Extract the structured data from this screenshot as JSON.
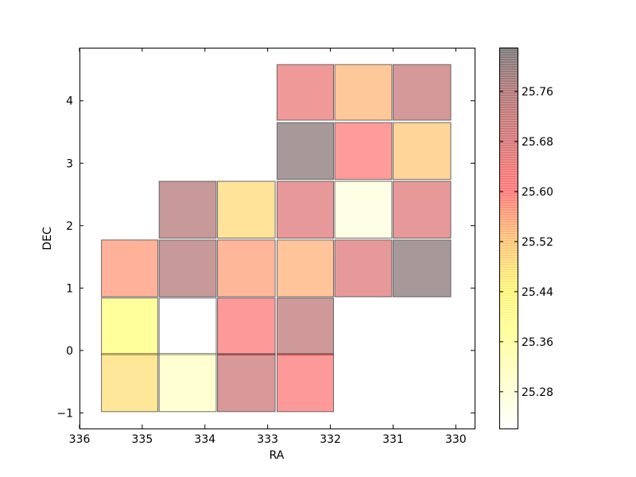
{
  "chart_data": {
    "type": "heatmap",
    "xlabel": "RA",
    "ylabel": "DEC",
    "xlim": [
      336,
      329.7
    ],
    "ylim": [
      -1.25,
      4.85
    ],
    "x_ticks": [
      336,
      335,
      334,
      333,
      332,
      331,
      330
    ],
    "x_tick_labels": [
      "336",
      "335",
      "334",
      "333",
      "332",
      "331",
      "330"
    ],
    "y_ticks": [
      -1,
      0,
      1,
      2,
      3,
      4
    ],
    "y_tick_labels": [
      "−1",
      "0",
      "1",
      "2",
      "3",
      "4"
    ],
    "grid": false,
    "colormap": "hot_r",
    "cell_opacity": 0.4,
    "colorbar": {
      "range": [
        25.22,
        25.83
      ],
      "ticks": [
        25.28,
        25.36,
        25.44,
        25.52,
        25.6,
        25.68,
        25.76
      ],
      "tick_labels": [
        "25.28",
        "25.36",
        "25.44",
        "25.52",
        "25.60",
        "25.68",
        "25.76"
      ]
    },
    "cells": [
      {
        "ra_min": 332.85,
        "ra_max": 331.95,
        "dec_min": 3.69,
        "dec_max": 4.58,
        "value": 25.64
      },
      {
        "ra_min": 331.93,
        "ra_max": 331.02,
        "dec_min": 3.69,
        "dec_max": 4.58,
        "value": 25.5
      },
      {
        "ra_min": 331.0,
        "ra_max": 330.08,
        "dec_min": 3.69,
        "dec_max": 4.58,
        "value": 25.7
      },
      {
        "ra_min": 332.85,
        "ra_max": 331.95,
        "dec_min": 2.74,
        "dec_max": 3.65,
        "value": 25.8
      },
      {
        "ra_min": 331.93,
        "ra_max": 331.02,
        "dec_min": 2.74,
        "dec_max": 3.65,
        "value": 25.6
      },
      {
        "ra_min": 331.0,
        "ra_max": 330.08,
        "dec_min": 2.74,
        "dec_max": 3.65,
        "value": 25.47
      },
      {
        "ra_min": 334.73,
        "ra_max": 333.82,
        "dec_min": 1.8,
        "dec_max": 2.71,
        "value": 25.73
      },
      {
        "ra_min": 333.8,
        "ra_max": 332.88,
        "dec_min": 1.8,
        "dec_max": 2.71,
        "value": 25.44
      },
      {
        "ra_min": 332.85,
        "ra_max": 331.95,
        "dec_min": 1.8,
        "dec_max": 2.71,
        "value": 25.66
      },
      {
        "ra_min": 331.93,
        "ra_max": 331.02,
        "dec_min": 1.8,
        "dec_max": 2.71,
        "value": 25.26
      },
      {
        "ra_min": 331.0,
        "ra_max": 330.08,
        "dec_min": 1.8,
        "dec_max": 2.71,
        "value": 25.66
      },
      {
        "ra_min": 335.65,
        "ra_max": 334.75,
        "dec_min": 0.86,
        "dec_max": 1.77,
        "value": 25.55
      },
      {
        "ra_min": 334.73,
        "ra_max": 333.82,
        "dec_min": 0.86,
        "dec_max": 1.77,
        "value": 25.73
      },
      {
        "ra_min": 333.8,
        "ra_max": 332.88,
        "dec_min": 0.86,
        "dec_max": 1.77,
        "value": 25.54
      },
      {
        "ra_min": 332.85,
        "ra_max": 331.95,
        "dec_min": 0.86,
        "dec_max": 1.77,
        "value": 25.51
      },
      {
        "ra_min": 331.93,
        "ra_max": 331.02,
        "dec_min": 0.86,
        "dec_max": 1.77,
        "value": 25.66
      },
      {
        "ra_min": 331.0,
        "ra_max": 330.08,
        "dec_min": 0.86,
        "dec_max": 1.77,
        "value": 25.8
      },
      {
        "ra_min": 335.65,
        "ra_max": 334.75,
        "dec_min": -0.07,
        "dec_max": 0.84,
        "value": 25.37
      },
      {
        "ra_min": 334.73,
        "ra_max": 333.82,
        "dec_min": -0.07,
        "dec_max": 0.84,
        "value": 25.22
      },
      {
        "ra_min": 333.8,
        "ra_max": 332.88,
        "dec_min": -0.07,
        "dec_max": 0.84,
        "value": 25.61
      },
      {
        "ra_min": 332.85,
        "ra_max": 331.95,
        "dec_min": -0.07,
        "dec_max": 0.84,
        "value": 25.71
      },
      {
        "ra_min": 335.65,
        "ra_max": 334.75,
        "dec_min": -0.98,
        "dec_max": -0.05,
        "value": 25.43
      },
      {
        "ra_min": 334.73,
        "ra_max": 333.82,
        "dec_min": -0.98,
        "dec_max": -0.05,
        "value": 25.29
      },
      {
        "ra_min": 333.8,
        "ra_max": 332.88,
        "dec_min": -0.98,
        "dec_max": -0.05,
        "value": 25.69
      },
      {
        "ra_min": 332.85,
        "ra_max": 331.95,
        "dec_min": -0.98,
        "dec_max": -0.05,
        "value": 25.61
      }
    ]
  }
}
